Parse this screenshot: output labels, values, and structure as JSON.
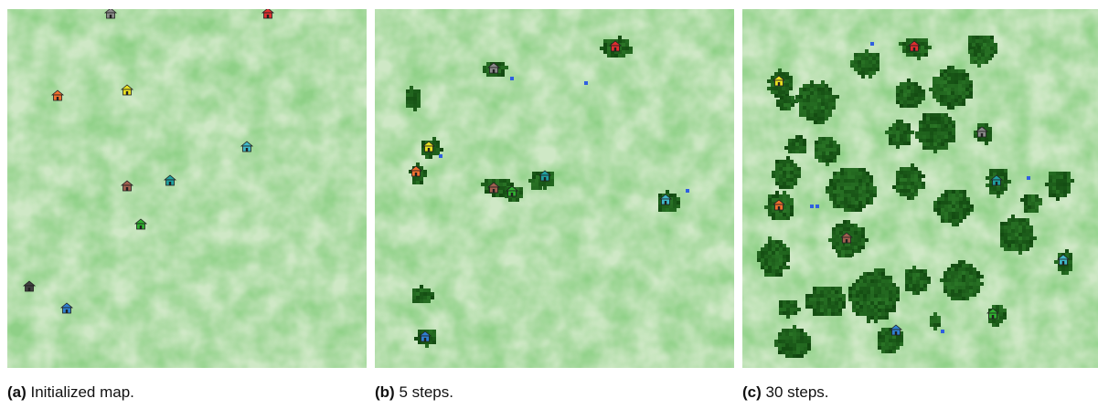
{
  "panels": [
    {
      "caption_label": "(a)",
      "caption_text": " Initialized map.",
      "houses": [
        {
          "color": "#8a8a8a"
        },
        {
          "color": "#e03030"
        },
        {
          "color": "#f07030"
        },
        {
          "color": "#e8e020"
        },
        {
          "color": "#40b8c8"
        },
        {
          "color": "#a06050"
        },
        {
          "color": "#20a0a0"
        },
        {
          "color": "#30b030"
        },
        {
          "color": "#404040"
        },
        {
          "color": "#3080d0"
        }
      ]
    },
    {
      "caption_label": "(b)",
      "caption_text": " 5 steps.",
      "houses": [
        {
          "color": "#e03030"
        },
        {
          "color": "#8a8a8a"
        },
        {
          "color": "#e8e020"
        },
        {
          "color": "#f07030"
        },
        {
          "color": "#a06050"
        },
        {
          "color": "#30b030"
        },
        {
          "color": "#20a0a0"
        },
        {
          "color": "#40b8c8"
        },
        {
          "color": "#3080d0"
        }
      ]
    },
    {
      "caption_label": "(c)",
      "caption_text": " 30 steps.",
      "houses": [
        {
          "color": "#e03030"
        },
        {
          "color": "#e8e020"
        },
        {
          "color": "#8a8a8a"
        },
        {
          "color": "#20a0a0"
        },
        {
          "color": "#f07030"
        },
        {
          "color": "#a06050"
        },
        {
          "color": "#40b8c8"
        },
        {
          "color": "#30b030"
        },
        {
          "color": "#3080d0"
        }
      ]
    }
  ]
}
